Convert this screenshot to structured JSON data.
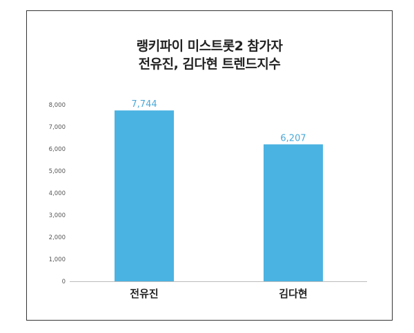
{
  "chart_data": {
    "type": "bar",
    "title_lines": [
      "랭키파이 미스트롯2 참가자",
      "전유진, 김다현 트렌드지수"
    ],
    "categories": [
      "전유진",
      "김다현"
    ],
    "values": [
      7744,
      6207
    ],
    "value_labels": [
      "7,744",
      "6,207"
    ],
    "y_ticks": [
      "0",
      "1,000",
      "2,000",
      "3,000",
      "4,000",
      "5,000",
      "6,000",
      "7,000",
      "8,000"
    ],
    "ylim": [
      0,
      8000
    ],
    "xlabel": "",
    "ylabel": "",
    "grid": false,
    "legend": "none",
    "bar_color": "#4ab3e2",
    "value_label_color": "#4aa8d8",
    "axis_color": "#bbbbbb"
  }
}
